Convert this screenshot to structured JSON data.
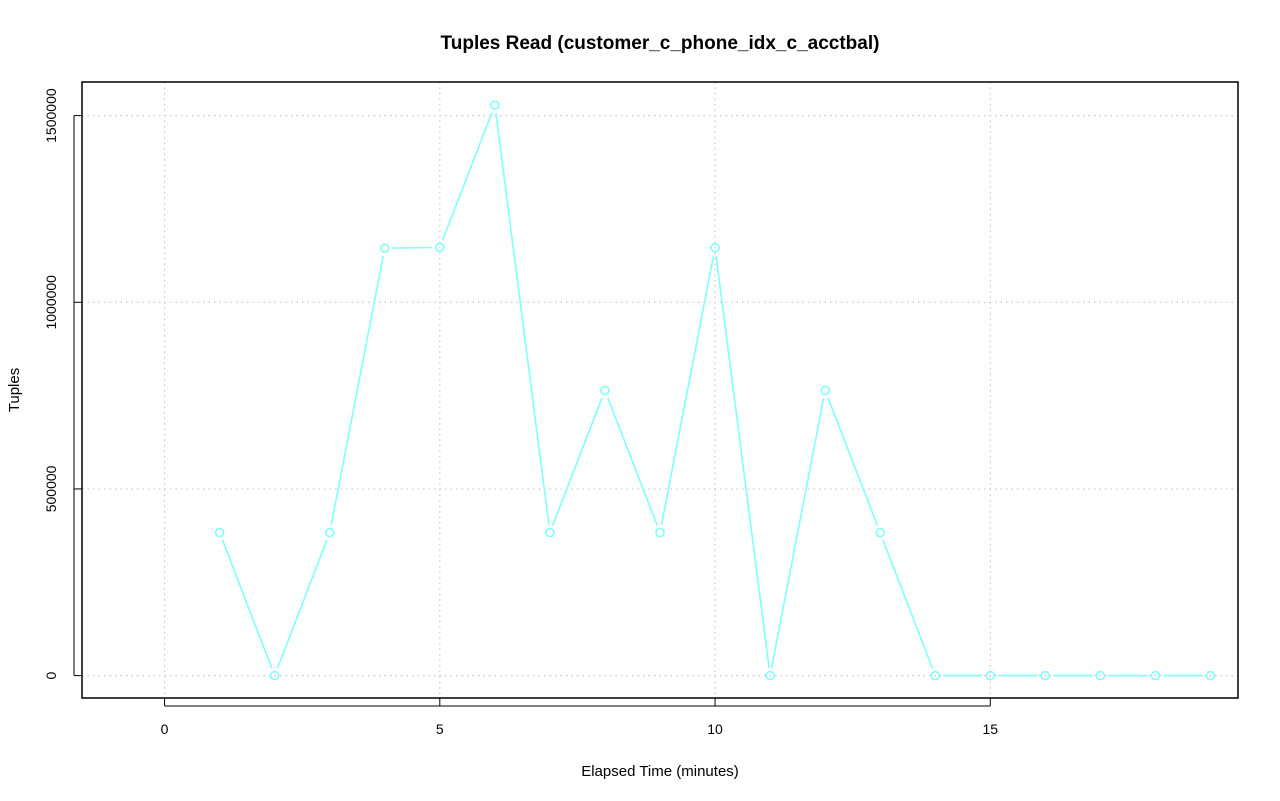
{
  "chart_data": {
    "type": "line",
    "title": "Tuples Read (customer_c_phone_idx_c_acctbal)",
    "xlabel": "Elapsed Time (minutes)",
    "ylabel": "Tuples",
    "xlim": [
      -1.5,
      19.5
    ],
    "ylim": [
      -60000,
      1590000
    ],
    "x_ticks": [
      0,
      5,
      10,
      15
    ],
    "x_tick_labels": [
      "0",
      "5",
      "10",
      "15"
    ],
    "y_ticks": [
      0,
      500000,
      1000000,
      1500000
    ],
    "y_tick_labels": [
      "0",
      "500000",
      "1000000",
      "1500000"
    ],
    "grid": true,
    "series": [
      {
        "color": "#7fffff",
        "x": [
          1,
          2,
          3,
          4,
          5,
          6,
          7,
          8,
          9,
          10,
          11,
          12,
          13,
          14,
          15,
          16,
          17,
          18,
          19
        ],
        "y": [
          383000,
          0,
          383000,
          1145000,
          1147000,
          1528000,
          383000,
          764000,
          383000,
          1146000,
          0,
          764000,
          383000,
          0,
          0,
          0,
          0,
          0,
          0
        ]
      }
    ]
  }
}
